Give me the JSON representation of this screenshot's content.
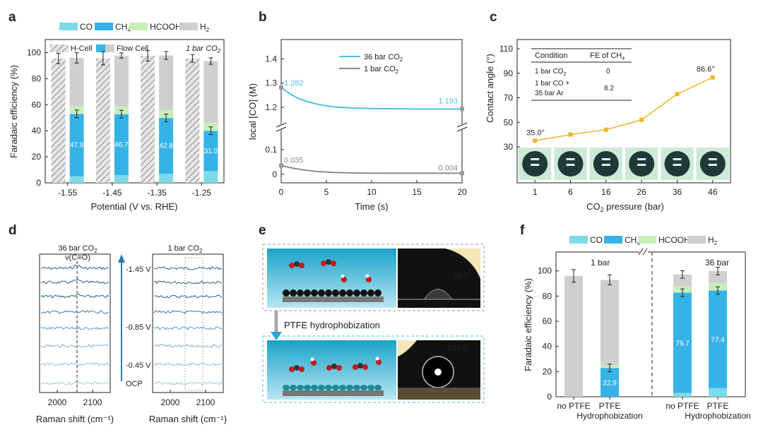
{
  "colors": {
    "co": "#7fd9e6",
    "ch4": "#36b3e6",
    "hcooh": "#c8eeb8",
    "h2": "#cfcfcf",
    "b36": "#4cc0e6",
    "b1": "#8a8a8a",
    "c_line": "#f0b429",
    "d_spec_dark": "#2b5f8a",
    "d_spec_light": "#9cc9e6"
  },
  "panels": {
    "a": "a",
    "b": "b",
    "c": "c",
    "d": "d",
    "e": "e",
    "f": "f"
  },
  "chart_data": [
    {
      "id": "a",
      "type": "bar",
      "title": "",
      "xlabel": "Potential (V vs. RHE)",
      "ylabel": "Faradaic efficiency (%)",
      "ylim": [
        0,
        110
      ],
      "yticks": [
        "0",
        "20",
        "40",
        "60",
        "80",
        "100"
      ],
      "legend": [
        "CO",
        "CH",
        "HCOOH",
        "H"
      ],
      "legend2": [
        "H-Cell",
        "Flow Cell"
      ],
      "note": "1 bar CO",
      "categories": [
        "-1.55",
        "-1.45",
        "-1.35",
        "-1.25"
      ],
      "hcell_values": [
        95.5,
        95.5,
        97.5,
        95.5
      ],
      "hcell_err": [
        4,
        5,
        4,
        3
      ],
      "series": [
        {
          "name": "CO",
          "values": [
            5,
            6,
            7,
            9
          ]
        },
        {
          "name": "CH4",
          "values": [
            47.9,
            46.7,
            42.8,
            31.0
          ]
        },
        {
          "name": "HCOOH",
          "values": [
            6,
            6,
            6,
            6
          ]
        },
        {
          "name": "H2",
          "values": [
            37,
            39,
            42,
            47.5
          ]
        }
      ],
      "flow_err": [
        4,
        2,
        3,
        2.5
      ],
      "ch4_labels": [
        "47.9",
        "46.7",
        "42.8",
        "31.0"
      ]
    },
    {
      "id": "b",
      "type": "line",
      "xlabel": "Time (s)",
      "ylabel": "local [CO] (M)",
      "xticks": [
        "0",
        "5",
        "10",
        "15",
        "20"
      ],
      "yticks_top": [
        "1.2",
        "1.3",
        "1.4"
      ],
      "yticks_bottom": [
        "0",
        "0.1"
      ],
      "legend": [
        "36 bar CO",
        "1 bar CO"
      ],
      "series": [
        {
          "name": "36 bar CO2",
          "x": [
            0,
            1,
            2,
            3,
            4,
            5,
            6,
            8,
            10,
            12,
            15,
            20
          ],
          "y": [
            1.282,
            1.255,
            1.235,
            1.222,
            1.213,
            1.206,
            1.201,
            1.197,
            1.195,
            1.194,
            1.193,
            1.193
          ]
        },
        {
          "name": "1 bar CO2",
          "x": [
            0,
            1,
            2,
            3,
            4,
            5,
            6,
            8,
            10,
            12,
            15,
            20
          ],
          "y": [
            0.035,
            0.027,
            0.02,
            0.015,
            0.011,
            0.009,
            0.007,
            0.005,
            0.0045,
            0.004,
            0.004,
            0.004
          ]
        }
      ],
      "labels": {
        "start36": "1.282",
        "end36": "1.193",
        "start1": "0.035",
        "end1": "0.004"
      }
    },
    {
      "id": "c",
      "type": "line",
      "xlabel": "CO pressure (bar)",
      "ylabel": "Contact angle (°)",
      "categories": [
        "1",
        "6",
        "16",
        "26",
        "36",
        "46"
      ],
      "values": [
        35.0,
        40,
        44,
        52,
        73,
        86.6
      ],
      "yticks": [
        "30",
        "50",
        "70",
        "90",
        "110"
      ],
      "labels": {
        "first": "35.0°",
        "last": "86.6°"
      },
      "table": {
        "h1": "Condition",
        "h2": "FE of CH",
        "r1c1": "1 bar CO",
        "r1c2": "0",
        "r2c1a": "1 bar CO +",
        "r2c1b": "35 bar Ar",
        "r2c2": "8.2"
      }
    },
    {
      "id": "d",
      "type": "line",
      "xlabel": "Raman shift (cm⁻¹)",
      "xticks": [
        "2000",
        "2100"
      ],
      "left_title": "36 bar CO",
      "left_sub": "ν(C≡O)",
      "right_title": "1 bar CO",
      "potentials": [
        "-1.45 V",
        "-0.85 V",
        "-0.45 V",
        "OCP"
      ]
    },
    {
      "id": "e",
      "type": "diagram",
      "angle_top": "58.5°",
      "angle_bottom": "134.6°",
      "label": "PTFE hydrophobization"
    },
    {
      "id": "f",
      "type": "bar",
      "ylabel": "Faradaic efficiency (%)",
      "ylim": [
        0,
        115
      ],
      "yticks": [
        "0",
        "20",
        "40",
        "60",
        "80",
        "100"
      ],
      "legend": [
        "CO",
        "CH",
        "HCOOH",
        "H"
      ],
      "groups": [
        "1 bar",
        "36 bar"
      ],
      "categories": [
        "no PTFE",
        "PTFE",
        "no PTFE",
        "PTFE"
      ],
      "cat_sub": [
        "",
        "Hydrophobization",
        "",
        "Hydrophobization"
      ],
      "series": [
        {
          "name": "CO",
          "values": [
            0,
            0,
            3,
            7
          ]
        },
        {
          "name": "CH4",
          "values": [
            0,
            22.9,
            79.7,
            77.4
          ]
        },
        {
          "name": "HCOOH",
          "values": [
            0,
            2,
            5,
            6
          ]
        },
        {
          "name": "H2",
          "values": [
            96,
            68,
            9.5,
            9.5
          ]
        }
      ],
      "err": [
        5,
        4,
        3,
        3
      ],
      "ch4_labels": [
        "",
        "22.9",
        "79.7",
        "77.4"
      ]
    }
  ]
}
